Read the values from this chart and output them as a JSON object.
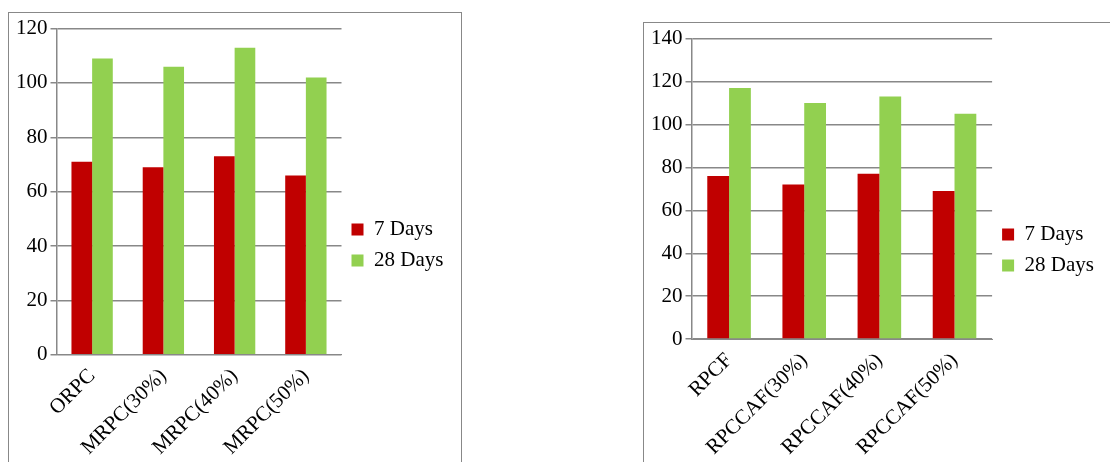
{
  "chart_data": [
    {
      "type": "bar",
      "categories": [
        "ORPC",
        "MRPC(30%)",
        "MRPC(40%)",
        "MRPC(50%)"
      ],
      "series": [
        {
          "name": "7 Days",
          "color": "#c00000",
          "values": [
            71,
            69,
            73,
            66
          ]
        },
        {
          "name": "28 Days",
          "color": "#92d050",
          "values": [
            109,
            106,
            113,
            102
          ]
        }
      ],
      "ylim": [
        0,
        120
      ],
      "yticks": [
        0,
        20,
        40,
        60,
        80,
        100,
        120
      ],
      "grid": "y",
      "legend": "right"
    },
    {
      "type": "bar",
      "categories": [
        "RPCF",
        "RPCCAF(30%)",
        "RPCCAF(40%)",
        "RPCCAF(50%)"
      ],
      "series": [
        {
          "name": "7 Days",
          "color": "#c00000",
          "values": [
            76,
            72,
            77,
            69
          ]
        },
        {
          "name": "28 Days",
          "color": "#92d050",
          "values": [
            117,
            110,
            113,
            105
          ]
        }
      ],
      "ylim": [
        0,
        140
      ],
      "yticks": [
        0,
        20,
        40,
        60,
        80,
        100,
        120,
        140
      ],
      "grid": "y",
      "legend": "right"
    }
  ]
}
